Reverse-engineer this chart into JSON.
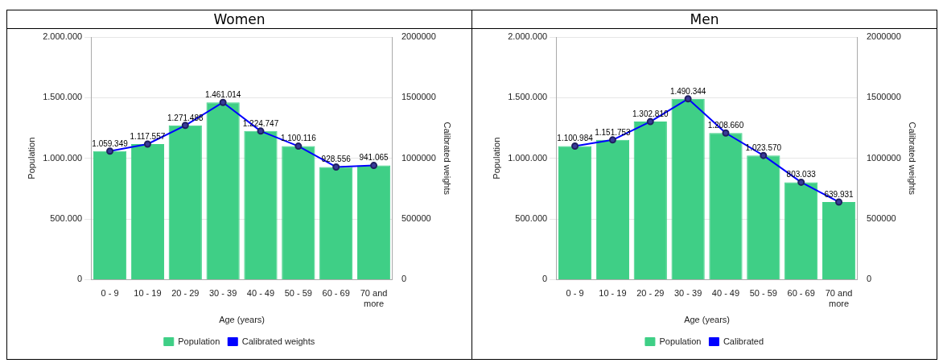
{
  "chart_data": [
    {
      "type": "bar",
      "title": "Women",
      "xlabel": "Age (years)",
      "ylabel": "Population",
      "y2label": "Calibrated weights",
      "categories": [
        "0 - 9",
        "10 - 19",
        "20 - 29",
        "30 - 39",
        "40 - 49",
        "50 - 59",
        "60 - 69",
        "70 and more"
      ],
      "series": [
        {
          "name": "Population",
          "color": "#3fcf86",
          "values": [
            1059349,
            1117557,
            1271488,
            1461014,
            1224747,
            1100116,
            928556,
            941065
          ]
        },
        {
          "name": "Calibrated weights",
          "type": "line",
          "axis": "y2",
          "color": "#0000ff",
          "values": [
            1059349,
            1117557,
            1271488,
            1461014,
            1224747,
            1100116,
            928556,
            941065
          ],
          "value_labels": [
            "1.059.349",
            "1.117.557",
            "1.271.488",
            "1.461.014",
            "1.224.747",
            "1.100.116",
            "928.556",
            "941.065"
          ]
        }
      ],
      "ylim": [
        0,
        2000000
      ],
      "yticks": [
        {
          "value": 0,
          "label": "0"
        },
        {
          "value": 500000,
          "label": "500.000"
        },
        {
          "value": 1000000,
          "label": "1.000.000"
        },
        {
          "value": 1500000,
          "label": "1.500.000"
        },
        {
          "value": 2000000,
          "label": "2.000.000"
        }
      ],
      "y2lim": [
        0,
        2000000
      ],
      "y2ticks": [
        0,
        500000,
        1000000,
        1500000,
        2000000
      ],
      "grid": "y",
      "legend": "bottom",
      "marker": "circle"
    },
    {
      "type": "bar",
      "title": "Men",
      "xlabel": "Age (years)",
      "ylabel": "Population",
      "y2label": "Calibrated weights",
      "categories": [
        "0 - 9",
        "10 - 19",
        "20 - 29",
        "30 - 39",
        "40 - 49",
        "50 - 59",
        "60 - 69",
        "70 and more"
      ],
      "series": [
        {
          "name": "Population",
          "color": "#3fcf86",
          "values": [
            1100984,
            1151753,
            1302810,
            1490344,
            1208660,
            1023570,
            803033,
            639931
          ]
        },
        {
          "name": "Calibrated",
          "type": "line",
          "axis": "y2",
          "color": "#0000ff",
          "values": [
            1100984,
            1151753,
            1302810,
            1490344,
            1208660,
            1023570,
            803033,
            639931
          ],
          "value_labels": [
            "1.100.984",
            "1.151.753",
            "1.302.810",
            "1.490.344",
            "1.208.660",
            "1.023.570",
            "803.033",
            "639.931"
          ]
        }
      ],
      "ylim": [
        0,
        2000000
      ],
      "yticks": [
        {
          "value": 0,
          "label": "0"
        },
        {
          "value": 500000,
          "label": "500.000"
        },
        {
          "value": 1000000,
          "label": "1.000.000"
        },
        {
          "value": 1500000,
          "label": "1.500.000"
        },
        {
          "value": 2000000,
          "label": "2.000.000"
        }
      ],
      "y2lim": [
        0,
        2000000
      ],
      "y2ticks": [
        0,
        500000,
        1000000,
        1500000,
        2000000
      ],
      "grid": "y",
      "legend": "bottom",
      "marker": "circle"
    }
  ]
}
